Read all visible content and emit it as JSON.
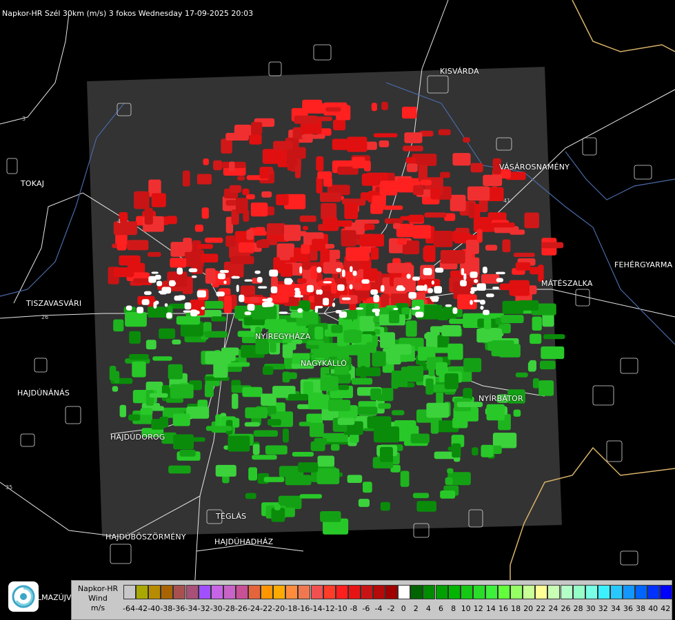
{
  "header": {
    "title": "Napkor-HR Szél 30km (m/s) 3 fokos Wednesday 17-09-2025 20:03"
  },
  "cities": [
    {
      "key": "kisvarda",
      "name": "KISVÁRDA"
    },
    {
      "key": "tokaj",
      "name": "TOKAJ"
    },
    {
      "key": "vasarosnameny",
      "name": "VÁSÁROSNAMÉNY"
    },
    {
      "key": "fehergyarmat",
      "name": "FEHÉRGYARMA"
    },
    {
      "key": "mateszalka",
      "name": "MÁTÉSZALKA"
    },
    {
      "key": "tiszavasvari",
      "name": "TISZAVASVÁRI"
    },
    {
      "key": "nyiregyhaza",
      "name": "NYÍREGYHÁZA"
    },
    {
      "key": "nagykallo",
      "name": "NAGYKÁLLÓ"
    },
    {
      "key": "nyirbator",
      "name": "NYÍRBÁTOR"
    },
    {
      "key": "hajdunanas",
      "name": "HAJDÚNÁNÁS"
    },
    {
      "key": "hajdudorog",
      "name": "HAJDÚDOROG"
    },
    {
      "key": "teglas",
      "name": "TÉGLÁS"
    },
    {
      "key": "hajduboszormeny",
      "name": "HAJDÚBÖSZÖRMÉNY"
    },
    {
      "key": "hajduhadhaz",
      "name": "HAJDÚHADHÁZ"
    }
  ],
  "roads": {
    "r26": "26",
    "r4": "4",
    "r35": "35",
    "r41": "41",
    "r3": "3"
  },
  "legend": {
    "line1": "Napkor-HR",
    "line2": "Wind",
    "line3": "m/s",
    "ticks": [
      "-64",
      "-42",
      "-40",
      "-38",
      "-36",
      "-34",
      "-32",
      "-30",
      "-28",
      "-26",
      "-24",
      "-22",
      "-20",
      "-18",
      "-16",
      "-14",
      "-12",
      "-10",
      "-8",
      "-6",
      "-4",
      "-2",
      "0",
      "2",
      "4",
      "6",
      "8",
      "10",
      "12",
      "14",
      "16",
      "18",
      "20",
      "22",
      "24",
      "26",
      "28",
      "30",
      "32",
      "34",
      "36",
      "38",
      "40",
      "42"
    ],
    "colors": [
      "#c8c8c8",
      "#a8a800",
      "#b88c00",
      "#a86400",
      "#a85050",
      "#a85078",
      "#a050ff",
      "#c864e6",
      "#c864c8",
      "#c85096",
      "#e6643c",
      "#ff9600",
      "#ffaa00",
      "#ff8c3c",
      "#f07850",
      "#f05050",
      "#ff3c28",
      "#ff1e1e",
      "#e61414",
      "#c81414",
      "#b40a0a",
      "#a00000",
      "#ffffff",
      "#006400",
      "#008c00",
      "#00a000",
      "#00b400",
      "#14c814",
      "#28dc28",
      "#3cf03c",
      "#64ff3c",
      "#96ff64",
      "#c8ff96",
      "#ffff96",
      "#c8ffb4",
      "#b4ffc8",
      "#96ffc8",
      "#78ffe6",
      "#3cf0ff",
      "#28c8ff",
      "#1496ff",
      "#0064ff",
      "#0032ff",
      "#0000ff"
    ]
  },
  "logo": {
    "text": "LMAZÚJVÁR"
  },
  "colors": {
    "background": "#000000",
    "radar_area": "#333333",
    "approach": "#e01010",
    "recede": "#1aa81a"
  }
}
